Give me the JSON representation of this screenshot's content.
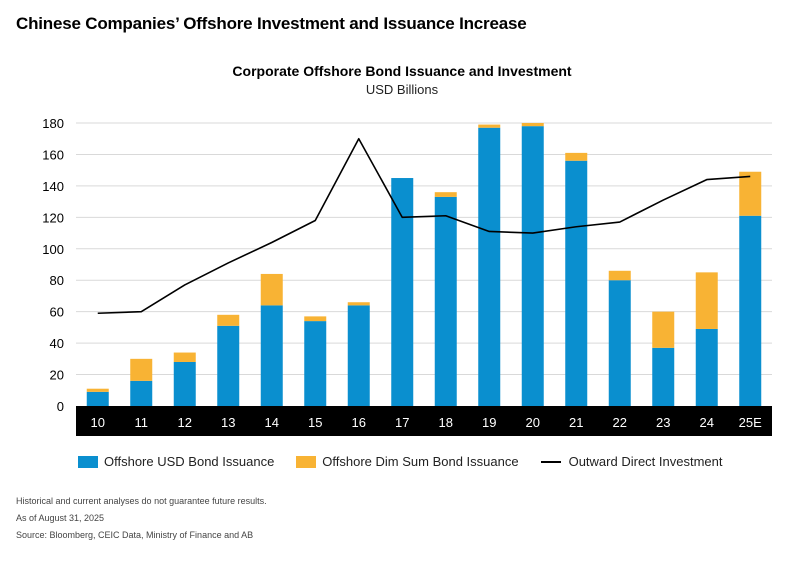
{
  "page": {
    "title": "Chinese Companies’ Offshore Investment and Issuance Increase",
    "footnotes": [
      "Historical and current analyses do not guarantee future results.",
      "As of August 31, 2025",
      "Source: Bloomberg, CEIC Data, Ministry of Finance and AB"
    ]
  },
  "colors": {
    "usd": "#0a8fcf",
    "dim_sum": "#f8b334",
    "line": "#000000",
    "axis_band": "#000000",
    "grid": "#d9d9d9"
  },
  "chart_data": {
    "type": "bar",
    "stacked": true,
    "title": "Corporate Offshore Bond Issuance and Investment",
    "subtitle": "USD Billions",
    "categories": [
      "10",
      "11",
      "12",
      "13",
      "14",
      "15",
      "16",
      "17",
      "18",
      "19",
      "20",
      "21",
      "22",
      "23",
      "24",
      "25E"
    ],
    "series": [
      {
        "name": "Offshore USD Bond Issuance",
        "type": "bar",
        "values": [
          9,
          16,
          28,
          51,
          64,
          54,
          64,
          145,
          133,
          177,
          178,
          156,
          80,
          37,
          49,
          121
        ]
      },
      {
        "name": "Offshore Dim Sum Bond Issuance",
        "type": "bar",
        "values": [
          2,
          14,
          6,
          7,
          20,
          3,
          2,
          0,
          3,
          2,
          2,
          5,
          6,
          23,
          36,
          28
        ]
      },
      {
        "name": "Outward Direct Investment",
        "type": "line",
        "values": [
          59,
          60,
          77,
          91,
          104,
          118,
          170,
          120,
          121,
          111,
          110,
          114,
          117,
          131,
          144,
          146
        ]
      }
    ],
    "ylim": [
      0,
      180
    ],
    "yticks": [
      0,
      20,
      40,
      60,
      80,
      100,
      120,
      140,
      160,
      180
    ],
    "grid": true,
    "legend_position": "bottom"
  }
}
